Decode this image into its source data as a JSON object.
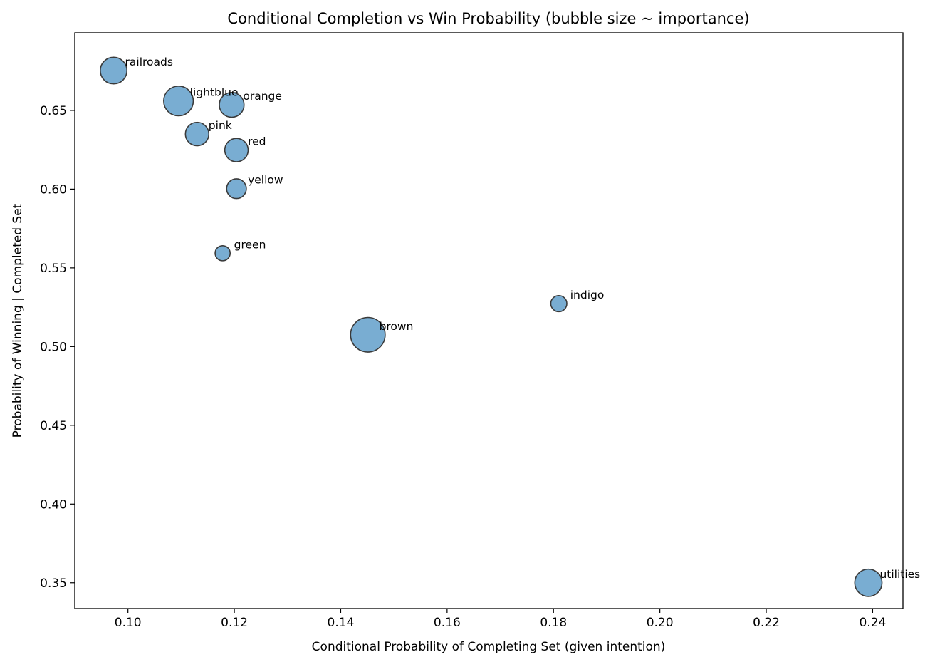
{
  "chart_data": {
    "type": "scatter",
    "title": "Conditional Completion vs Win Probability (bubble size ~ importance)",
    "xlabel": "Conditional Probability of Completing Set (given intention)",
    "ylabel": "Probability of Winning | Completed Set",
    "xlim": [
      0.09,
      0.2457
    ],
    "ylim": [
      0.3336,
      0.6993
    ],
    "xticks": [
      0.1,
      0.12,
      0.14,
      0.16,
      0.18,
      0.2,
      0.22,
      0.24
    ],
    "xtick_labels": [
      "0.10",
      "0.12",
      "0.14",
      "0.16",
      "0.18",
      "0.20",
      "0.22",
      "0.24"
    ],
    "yticks": [
      0.35,
      0.4,
      0.45,
      0.5,
      0.55,
      0.6,
      0.65
    ],
    "ytick_labels": [
      "0.35",
      "0.40",
      "0.45",
      "0.50",
      "0.55",
      "0.60",
      "0.65"
    ],
    "grid": false,
    "bubble_color": "#1f77b4",
    "bubble_alpha": 0.6,
    "edge_color": "#3a3a3a",
    "points": [
      {
        "label": "railroads",
        "x": 0.0973,
        "y": 0.6753,
        "importance": 1.1
      },
      {
        "label": "lightblue",
        "x": 0.1095,
        "y": 0.656,
        "importance": 1.36
      },
      {
        "label": "orange",
        "x": 0.1195,
        "y": 0.6535,
        "importance": 0.95
      },
      {
        "label": "pink",
        "x": 0.113,
        "y": 0.635,
        "importance": 0.85
      },
      {
        "label": "red",
        "x": 0.1204,
        "y": 0.6248,
        "importance": 0.85
      },
      {
        "label": "yellow",
        "x": 0.1204,
        "y": 0.6003,
        "importance": 0.6
      },
      {
        "label": "green",
        "x": 0.1178,
        "y": 0.5593,
        "importance": 0.35
      },
      {
        "label": "indigo",
        "x": 0.181,
        "y": 0.5273,
        "importance": 0.4
      },
      {
        "label": "brown",
        "x": 0.1451,
        "y": 0.5075,
        "importance": 1.85
      },
      {
        "label": "utilities",
        "x": 0.2392,
        "y": 0.35,
        "importance": 1.15
      }
    ]
  }
}
